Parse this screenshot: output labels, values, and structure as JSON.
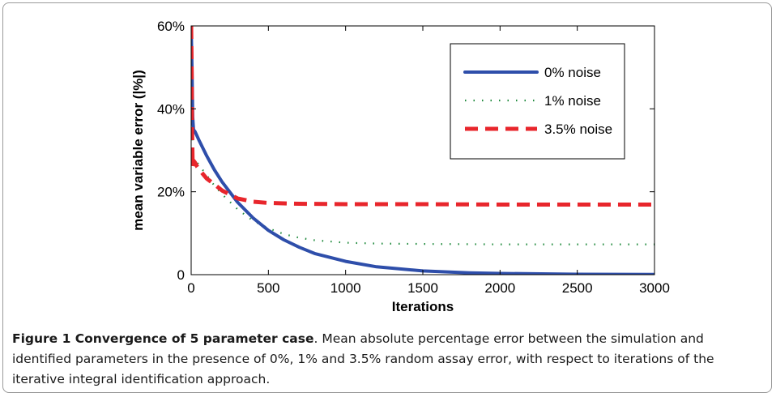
{
  "chart_data": {
    "type": "line",
    "xlabel": "Iterations",
    "ylabel": "mean variable error (|%|)",
    "xlim": [
      0,
      3000
    ],
    "ylim": [
      0,
      60
    ],
    "xticks": [
      0,
      500,
      1000,
      1500,
      2000,
      2500,
      3000
    ],
    "xtick_labels": [
      "0",
      "500",
      "1000",
      "1500",
      "2000",
      "2500",
      "3000"
    ],
    "yticks": [
      0,
      20,
      40,
      60
    ],
    "ytick_labels": [
      "0",
      "20%",
      "40%",
      "60%"
    ],
    "grid": false,
    "legend_position": "top-right",
    "series": [
      {
        "name": "0% noise",
        "color": "#2e4eaa",
        "style": "solid",
        "x": [
          0,
          5,
          10,
          15,
          25,
          50,
          100,
          150,
          200,
          300,
          400,
          500,
          600,
          700,
          800,
          1000,
          1200,
          1500,
          1800,
          2000,
          2500,
          3000
        ],
        "y": [
          60,
          50,
          38,
          35,
          34.5,
          32.5,
          28.7,
          25.3,
          22.4,
          17.5,
          13.7,
          10.7,
          8.4,
          6.6,
          5.1,
          3.2,
          1.9,
          0.9,
          0.45,
          0.3,
          0.1,
          0.03
        ]
      },
      {
        "name": "1% noise",
        "color": "#1f8a3c",
        "style": "dotted",
        "x": [
          0,
          5,
          10,
          15,
          25,
          50,
          100,
          150,
          200,
          300,
          400,
          500,
          600,
          700,
          800,
          1000,
          1200,
          1500,
          2000,
          2500,
          3000
        ],
        "y": [
          45,
          38,
          30,
          28,
          27.8,
          26.5,
          24,
          21.5,
          19.4,
          15.8,
          13,
          11.2,
          9.8,
          8.9,
          8.3,
          7.7,
          7.5,
          7.4,
          7.3,
          7.3,
          7.3
        ]
      },
      {
        "name": "3.5% noise",
        "color": "#e8262c",
        "style": "dashed",
        "x": [
          0,
          3,
          6,
          10,
          15,
          25,
          40,
          60,
          100,
          150,
          200,
          300,
          400,
          500,
          700,
          1000,
          1500,
          2000,
          2500,
          3000
        ],
        "y": [
          60,
          50,
          35,
          26,
          27.5,
          27,
          26,
          25,
          23.2,
          21.8,
          20.3,
          18.4,
          17.6,
          17.3,
          17.1,
          17,
          17,
          16.9,
          16.9,
          16.9
        ]
      }
    ]
  },
  "caption": {
    "title": "Figure 1 Convergence of 5 parameter case",
    "text": ". Mean absolute percentage error between the simulation and identified parameters in the presence of 0%, 1% and 3.5% random assay error, with respect to iterations of the iterative integral identification approach."
  }
}
